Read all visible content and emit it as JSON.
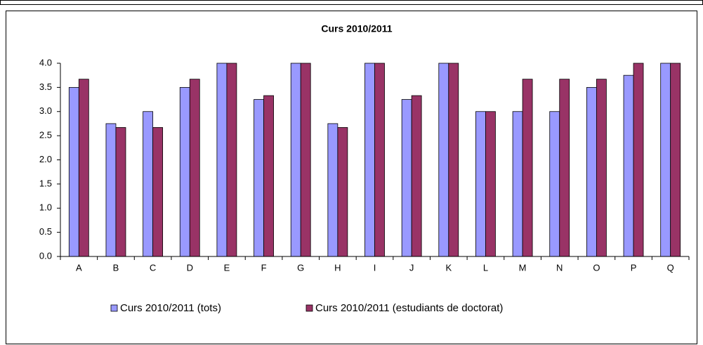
{
  "chart_data": {
    "type": "bar",
    "title": "Curs 2010/2011",
    "categories": [
      "A",
      "B",
      "C",
      "D",
      "E",
      "F",
      "G",
      "H",
      "I",
      "J",
      "K",
      "L",
      "M",
      "N",
      "O",
      "P",
      "Q"
    ],
    "series": [
      {
        "name": "Curs 2010/2011 (tots)",
        "color": "#9999ff",
        "values": [
          3.5,
          2.75,
          3.0,
          3.5,
          4.0,
          3.25,
          4.0,
          2.75,
          4.0,
          3.25,
          4.0,
          3.0,
          3.0,
          3.0,
          3.5,
          3.75,
          4.0
        ]
      },
      {
        "name": "Curs 2010/2011 (estudiants de doctorat)",
        "color": "#993366",
        "values": [
          3.67,
          2.67,
          2.67,
          3.67,
          4.0,
          3.33,
          4.0,
          2.67,
          4.0,
          3.33,
          4.0,
          3.0,
          3.67,
          3.67,
          3.67,
          4.0,
          4.0
        ]
      }
    ],
    "ylim": [
      0,
      4
    ],
    "yticks": [
      {
        "value": 0,
        "label": "0.0"
      },
      {
        "value": 0.5,
        "label": "0.5"
      },
      {
        "value": 1,
        "label": "1.0"
      },
      {
        "value": 1.5,
        "label": "1.5"
      },
      {
        "value": 2,
        "label": "2.0"
      },
      {
        "value": 2.5,
        "label": "2.5"
      },
      {
        "value": 3,
        "label": "3.0"
      },
      {
        "value": 3.5,
        "label": "3.5"
      },
      {
        "value": 4,
        "label": "4.0"
      }
    ],
    "grid": false,
    "legend": "bottom"
  }
}
